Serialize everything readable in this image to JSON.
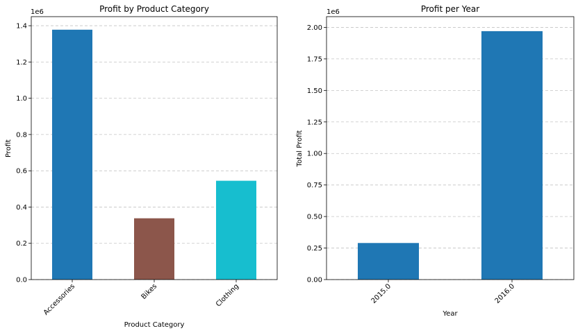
{
  "chart_data": [
    {
      "type": "bar",
      "title": "Profit by Product Category",
      "xlabel": "Product Category",
      "ylabel": "Profit",
      "y_offset_label": "1e6",
      "categories": [
        "Accessories",
        "Bikes",
        "Clothing"
      ],
      "values": [
        1378000,
        338000,
        545000
      ],
      "colors": [
        "#1f77b4",
        "#8c564b",
        "#17becf"
      ],
      "ylim": [
        0,
        1450000
      ],
      "yticks": [
        0,
        200000,
        400000,
        600000,
        800000,
        1000000,
        1200000,
        1400000
      ],
      "ytick_labels": [
        "0.0",
        "0.2",
        "0.4",
        "0.6",
        "0.8",
        "1.0",
        "1.2",
        "1.4"
      ],
      "grid": "y-dashed",
      "x_tick_rotation": 45
    },
    {
      "type": "bar",
      "title": "Profit per Year",
      "xlabel": "Year",
      "ylabel": "Total Profit",
      "y_offset_label": "1e6",
      "categories": [
        "2015.0",
        "2016.0"
      ],
      "values": [
        290000,
        1970000
      ],
      "colors": [
        "#1f77b4",
        "#1f77b4"
      ],
      "ylim": [
        0,
        2085000
      ],
      "yticks": [
        0,
        250000,
        500000,
        750000,
        1000000,
        1250000,
        1500000,
        1750000,
        2000000
      ],
      "ytick_labels": [
        "0.00",
        "0.25",
        "0.50",
        "0.75",
        "1.00",
        "1.25",
        "1.50",
        "1.75",
        "2.00"
      ],
      "grid": "y-dashed",
      "x_tick_rotation": 45
    }
  ]
}
